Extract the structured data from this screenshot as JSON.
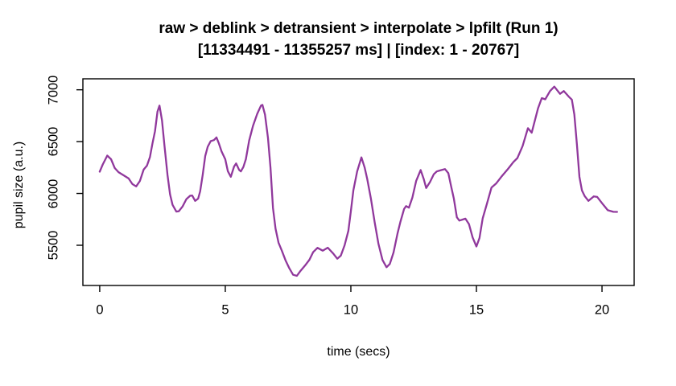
{
  "chart_data": {
    "type": "line",
    "title": "raw > deblink > detransient > interpolate > lpfilt (Run 1)",
    "subtitle": "[11334491 - 11355257 ms] | [index: 1 - 20767]",
    "xlabel": "time (secs)",
    "ylabel": "pupil size (a.u.)",
    "x_ticks": [
      0,
      5,
      10,
      15,
      20
    ],
    "y_ticks": [
      5500,
      6000,
      6500,
      7000
    ],
    "xlim": [
      -0.67,
      21.28
    ],
    "ylim": [
      5112,
      7106
    ],
    "grid": false,
    "legend": "none",
    "line_color": "#90389C",
    "axis_color": "#000000",
    "series": [
      {
        "name": "pupil size (a.u.)",
        "points": [
          [
            0.0,
            6210
          ],
          [
            0.12,
            6280
          ],
          [
            0.3,
            6365
          ],
          [
            0.45,
            6330
          ],
          [
            0.6,
            6245
          ],
          [
            0.75,
            6205
          ],
          [
            0.95,
            6175
          ],
          [
            1.15,
            6145
          ],
          [
            1.3,
            6090
          ],
          [
            1.45,
            6068
          ],
          [
            1.6,
            6120
          ],
          [
            1.75,
            6230
          ],
          [
            1.88,
            6268
          ],
          [
            2.0,
            6350
          ],
          [
            2.1,
            6480
          ],
          [
            2.2,
            6600
          ],
          [
            2.3,
            6790
          ],
          [
            2.38,
            6848
          ],
          [
            2.48,
            6705
          ],
          [
            2.58,
            6460
          ],
          [
            2.7,
            6175
          ],
          [
            2.8,
            5992
          ],
          [
            2.9,
            5890
          ],
          [
            3.05,
            5825
          ],
          [
            3.15,
            5828
          ],
          [
            3.3,
            5875
          ],
          [
            3.45,
            5945
          ],
          [
            3.6,
            5978
          ],
          [
            3.68,
            5980
          ],
          [
            3.8,
            5928
          ],
          [
            3.92,
            5950
          ],
          [
            4.0,
            6020
          ],
          [
            4.1,
            6180
          ],
          [
            4.2,
            6360
          ],
          [
            4.3,
            6450
          ],
          [
            4.42,
            6505
          ],
          [
            4.55,
            6515
          ],
          [
            4.65,
            6540
          ],
          [
            4.75,
            6480
          ],
          [
            4.85,
            6406
          ],
          [
            5.0,
            6330
          ],
          [
            5.1,
            6215
          ],
          [
            5.22,
            6160
          ],
          [
            5.35,
            6260
          ],
          [
            5.43,
            6290
          ],
          [
            5.55,
            6228
          ],
          [
            5.62,
            6213
          ],
          [
            5.72,
            6255
          ],
          [
            5.82,
            6330
          ],
          [
            5.95,
            6510
          ],
          [
            6.1,
            6650
          ],
          [
            6.27,
            6768
          ],
          [
            6.42,
            6848
          ],
          [
            6.48,
            6855
          ],
          [
            6.58,
            6760
          ],
          [
            6.7,
            6535
          ],
          [
            6.8,
            6250
          ],
          [
            6.9,
            5860
          ],
          [
            7.0,
            5660
          ],
          [
            7.12,
            5525
          ],
          [
            7.25,
            5448
          ],
          [
            7.4,
            5355
          ],
          [
            7.55,
            5278
          ],
          [
            7.7,
            5215
          ],
          [
            7.85,
            5205
          ],
          [
            8.0,
            5255
          ],
          [
            8.2,
            5312
          ],
          [
            8.35,
            5360
          ],
          [
            8.5,
            5435
          ],
          [
            8.67,
            5475
          ],
          [
            8.88,
            5448
          ],
          [
            9.08,
            5477
          ],
          [
            9.3,
            5420
          ],
          [
            9.46,
            5370
          ],
          [
            9.6,
            5400
          ],
          [
            9.75,
            5500
          ],
          [
            9.9,
            5640
          ],
          [
            10.0,
            5830
          ],
          [
            10.1,
            6030
          ],
          [
            10.25,
            6212
          ],
          [
            10.42,
            6348
          ],
          [
            10.55,
            6250
          ],
          [
            10.65,
            6140
          ],
          [
            10.8,
            5950
          ],
          [
            10.95,
            5720
          ],
          [
            11.1,
            5512
          ],
          [
            11.26,
            5358
          ],
          [
            11.42,
            5288
          ],
          [
            11.55,
            5320
          ],
          [
            11.7,
            5430
          ],
          [
            11.86,
            5615
          ],
          [
            11.97,
            5725
          ],
          [
            12.12,
            5850
          ],
          [
            12.2,
            5878
          ],
          [
            12.31,
            5862
          ],
          [
            12.45,
            5960
          ],
          [
            12.6,
            6120
          ],
          [
            12.78,
            6225
          ],
          [
            12.9,
            6140
          ],
          [
            13.0,
            6052
          ],
          [
            13.15,
            6110
          ],
          [
            13.3,
            6185
          ],
          [
            13.42,
            6212
          ],
          [
            13.6,
            6225
          ],
          [
            13.75,
            6235
          ],
          [
            13.88,
            6195
          ],
          [
            14.0,
            6060
          ],
          [
            14.1,
            5952
          ],
          [
            14.22,
            5770
          ],
          [
            14.32,
            5738
          ],
          [
            14.45,
            5748
          ],
          [
            14.56,
            5757
          ],
          [
            14.7,
            5705
          ],
          [
            14.85,
            5575
          ],
          [
            15.0,
            5488
          ],
          [
            15.12,
            5570
          ],
          [
            15.25,
            5760
          ],
          [
            15.42,
            5902
          ],
          [
            15.6,
            6056
          ],
          [
            15.78,
            6095
          ],
          [
            15.99,
            6160
          ],
          [
            16.26,
            6237
          ],
          [
            16.47,
            6302
          ],
          [
            16.63,
            6341
          ],
          [
            16.84,
            6457
          ],
          [
            17.05,
            6630
          ],
          [
            17.2,
            6586
          ],
          [
            17.45,
            6820
          ],
          [
            17.6,
            6920
          ],
          [
            17.74,
            6908
          ],
          [
            17.93,
            6988
          ],
          [
            18.1,
            7031
          ],
          [
            18.33,
            6961
          ],
          [
            18.48,
            6988
          ],
          [
            18.67,
            6936
          ],
          [
            18.8,
            6905
          ],
          [
            18.9,
            6760
          ],
          [
            19.0,
            6480
          ],
          [
            19.1,
            6160
          ],
          [
            19.2,
            6030
          ],
          [
            19.31,
            5975
          ],
          [
            19.46,
            5928
          ],
          [
            19.67,
            5972
          ],
          [
            19.81,
            5966
          ],
          [
            20.02,
            5900
          ],
          [
            20.23,
            5838
          ],
          [
            20.45,
            5823
          ],
          [
            20.6,
            5822
          ]
        ]
      }
    ]
  }
}
